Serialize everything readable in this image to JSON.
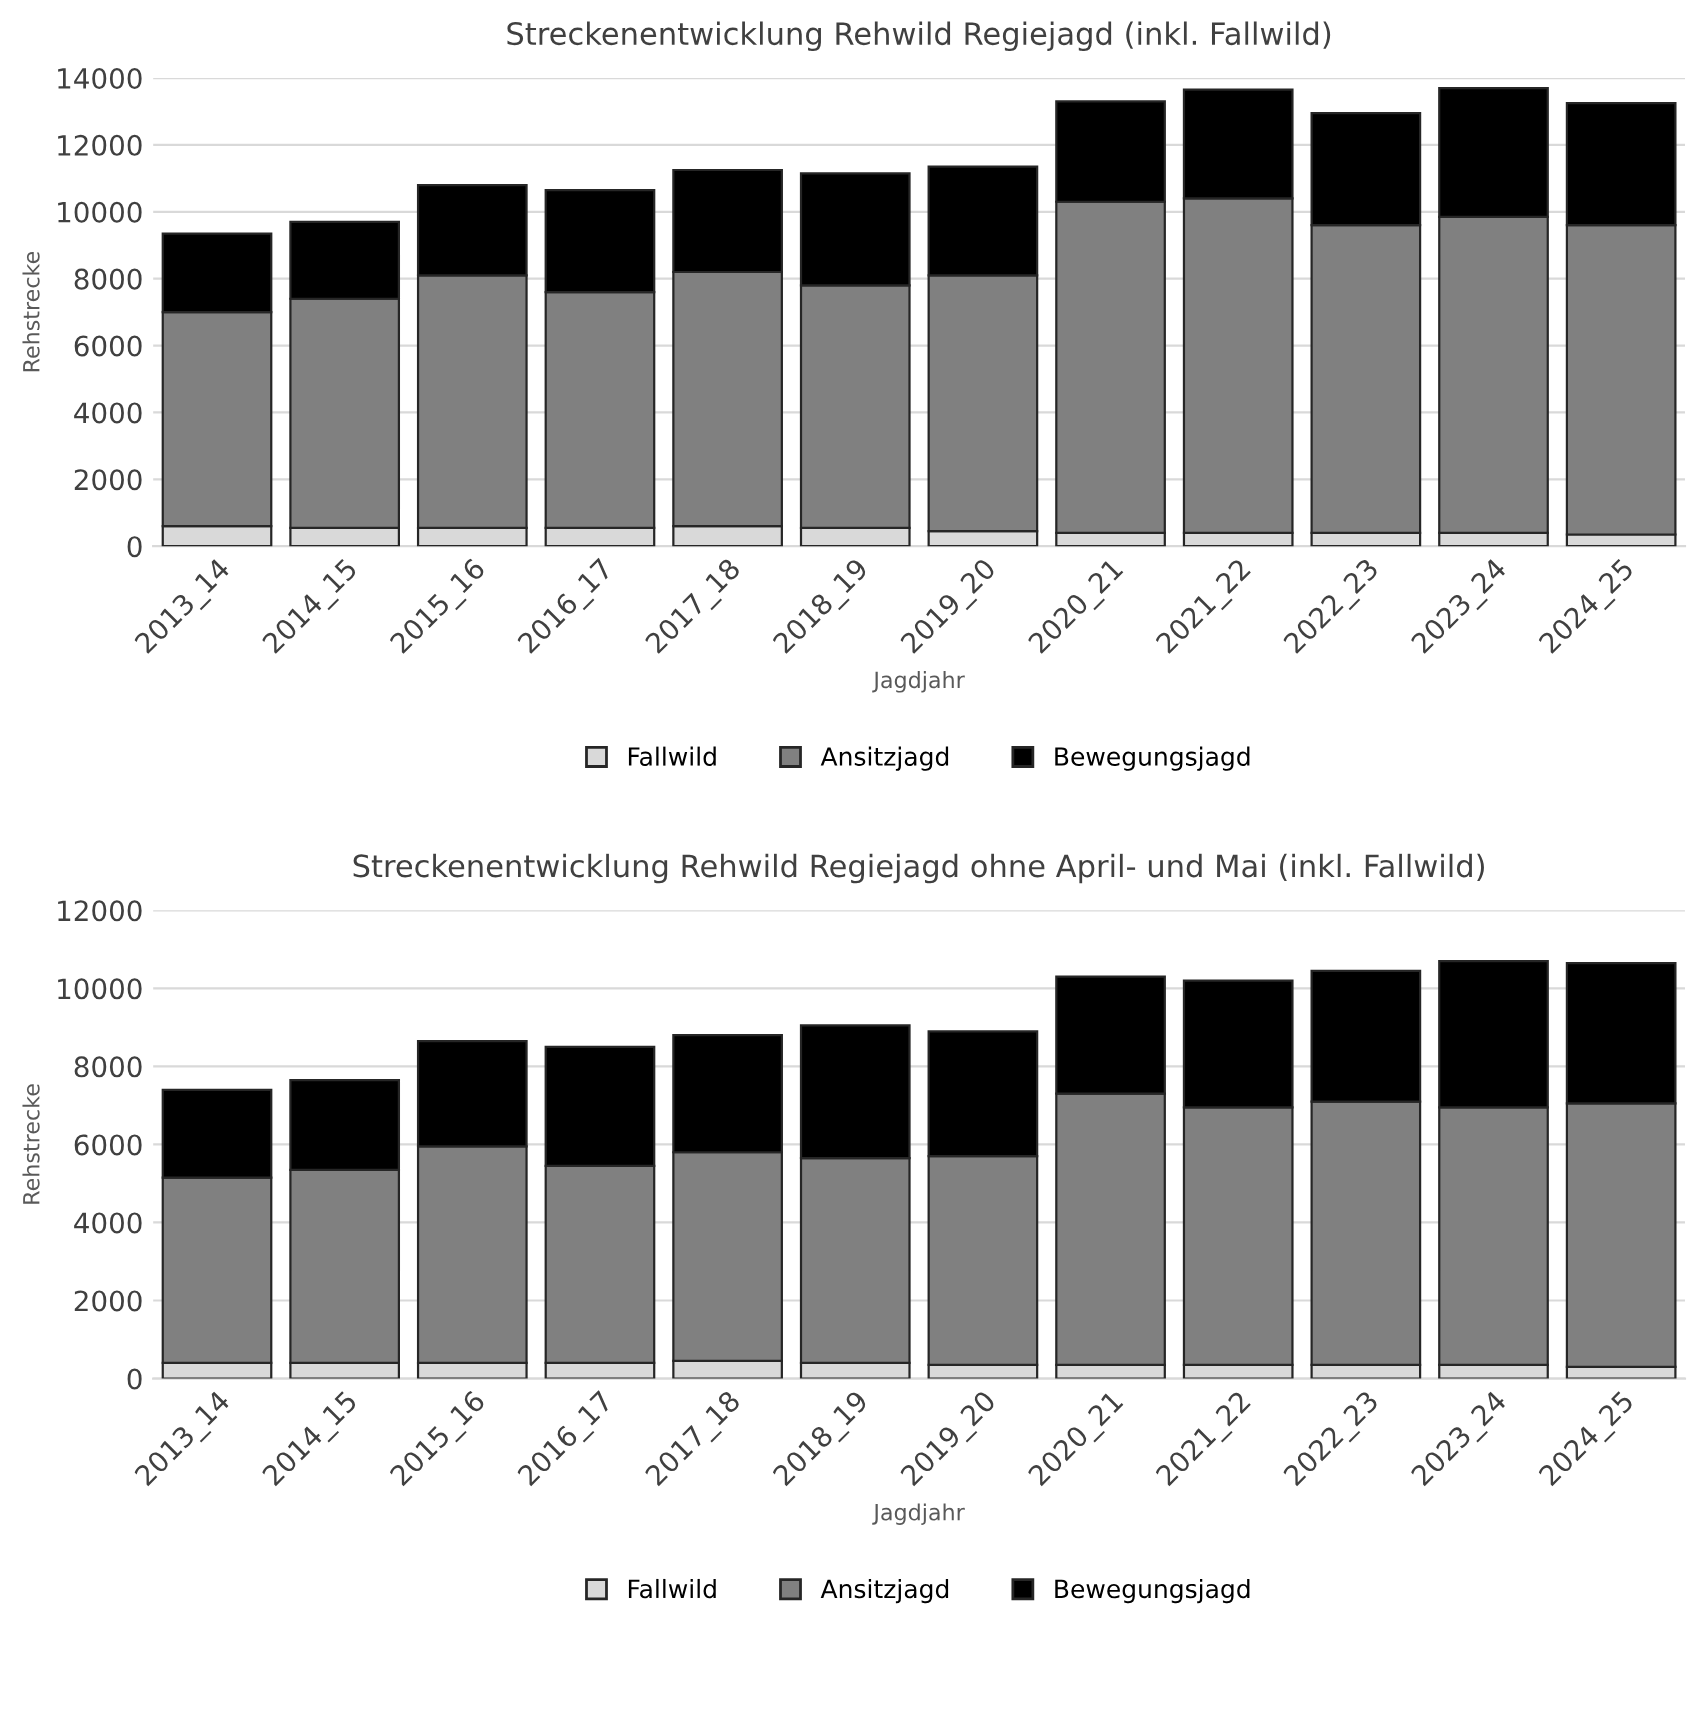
{
  "chart_data": [
    {
      "type": "bar",
      "title": "Streckenentwicklung Rehwild Regiejagd (inkl. Fallwild)",
      "xlabel": "Jagdjahr",
      "ylabel": "Rehstrecke",
      "stacked": true,
      "grid": "y",
      "legend": "bottom",
      "categories": [
        "2013_14",
        "2014_15",
        "2015_16",
        "2016_17",
        "2017_18",
        "2018_19",
        "2019_20",
        "2020_21",
        "2021_22",
        "2022_23",
        "2023_24",
        "2024_25"
      ],
      "ylim": [
        0,
        14000
      ],
      "yticks": [
        0,
        2000,
        4000,
        6000,
        8000,
        10000,
        12000,
        14000
      ],
      "series": [
        {
          "name": "Fallwild",
          "color": "#d9d9d9",
          "values": [
            600,
            550,
            550,
            550,
            600,
            550,
            450,
            400,
            400,
            400,
            400,
            350
          ]
        },
        {
          "name": "Ansitzjagd",
          "color": "#808080",
          "values": [
            6400,
            6850,
            7550,
            7050,
            7600,
            7250,
            7650,
            9900,
            10000,
            9200,
            9450,
            9250
          ]
        },
        {
          "name": "Bewegungsjagd",
          "color": "#000000",
          "values": [
            2350,
            2300,
            2700,
            3050,
            3050,
            3350,
            3250,
            3000,
            3250,
            3350,
            3850,
            3650
          ]
        }
      ]
    },
    {
      "type": "bar",
      "title": "Streckenentwicklung Rehwild Regiejagd ohne April- und Mai (inkl. Fallwild)",
      "xlabel": "Jagdjahr",
      "ylabel": "Rehstrecke",
      "stacked": true,
      "grid": "y",
      "legend": "bottom",
      "categories": [
        "2013_14",
        "2014_15",
        "2015_16",
        "2016_17",
        "2017_18",
        "2018_19",
        "2019_20",
        "2020_21",
        "2021_22",
        "2022_23",
        "2023_24",
        "2024_25"
      ],
      "ylim": [
        0,
        12000
      ],
      "yticks": [
        0,
        2000,
        4000,
        6000,
        8000,
        10000,
        12000
      ],
      "series": [
        {
          "name": "Fallwild",
          "color": "#d9d9d9",
          "values": [
            400,
            400,
            400,
            400,
            450,
            400,
            350,
            350,
            350,
            350,
            350,
            300
          ]
        },
        {
          "name": "Ansitzjagd",
          "color": "#808080",
          "values": [
            4750,
            4950,
            5550,
            5050,
            5350,
            5250,
            5350,
            6950,
            6600,
            6750,
            6600,
            6750
          ]
        },
        {
          "name": "Bewegungsjagd",
          "color": "#000000",
          "values": [
            2250,
            2300,
            2700,
            3050,
            3000,
            3400,
            3200,
            3000,
            3250,
            3350,
            3750,
            3600
          ]
        }
      ]
    }
  ]
}
